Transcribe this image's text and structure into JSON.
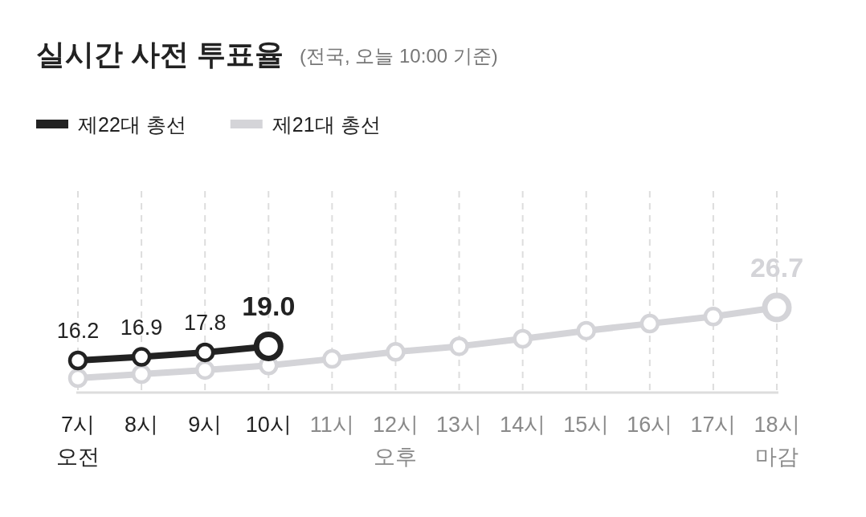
{
  "chart_data": {
    "type": "line",
    "title": "실시간 사전 투표율",
    "subtitle": "(전국, 오늘 10:00 기준)",
    "categories": [
      "7시\n오전",
      "8시",
      "9시",
      "10시",
      "11시",
      "12시\n오후",
      "13시",
      "14시",
      "15시",
      "16시",
      "17시",
      "18시\n마감"
    ],
    "series": [
      {
        "name": "제22대 총선",
        "color": "#222222",
        "values": [
          16.2,
          16.9,
          17.8,
          19.0,
          null,
          null,
          null,
          null,
          null,
          null,
          null,
          null
        ],
        "value_labels": [
          "16.2",
          "16.9",
          "17.8",
          "19.0",
          null,
          null,
          null,
          null,
          null,
          null,
          null,
          null
        ]
      },
      {
        "name": "제21대 총선",
        "color": "#d4d4d8",
        "values": [
          12.7,
          13.5,
          14.3,
          15.2,
          16.5,
          17.9,
          19.0,
          20.5,
          22.1,
          23.5,
          24.9,
          26.7
        ],
        "value_labels": [
          null,
          null,
          null,
          null,
          null,
          null,
          null,
          null,
          null,
          null,
          null,
          "26.7"
        ]
      }
    ],
    "grid": "x",
    "legend": "top left",
    "marker": "circle",
    "line_style": "solid"
  }
}
